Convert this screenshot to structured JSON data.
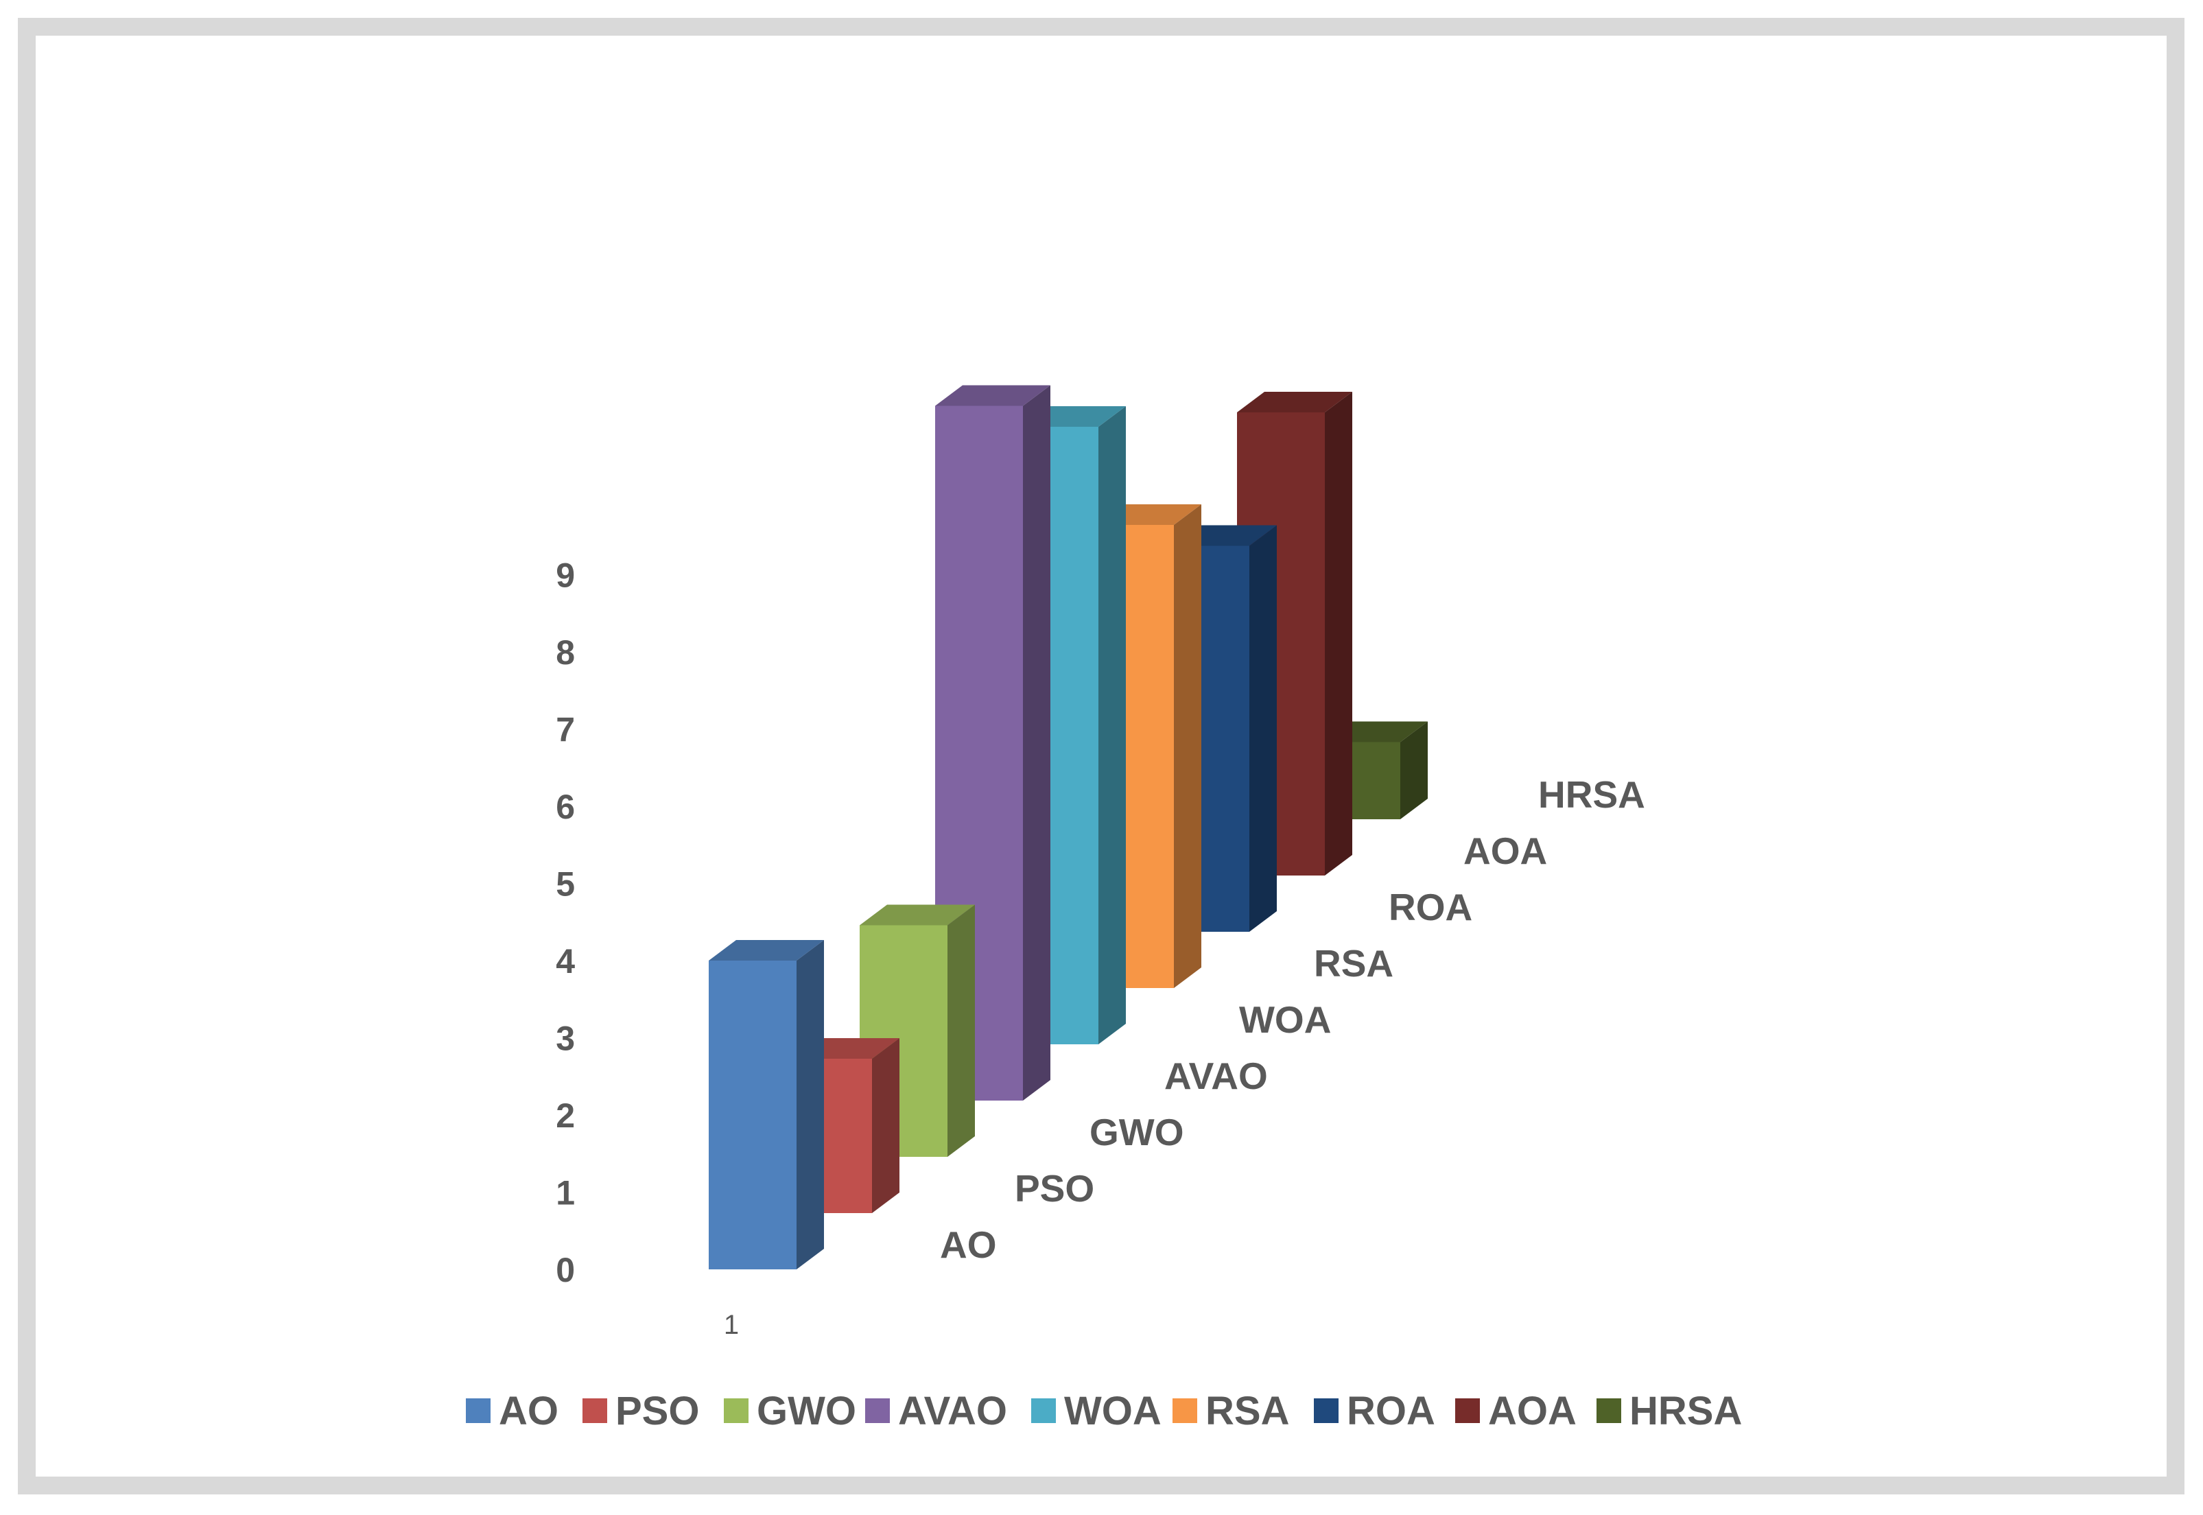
{
  "chart_data": {
    "type": "bar",
    "subtype": "3d-column",
    "title": "",
    "xlabel": "",
    "ylabel": "",
    "categories": [
      "1"
    ],
    "ylim": [
      0,
      9
    ],
    "yticks": [
      "0",
      "1",
      "2",
      "3",
      "4",
      "5",
      "6",
      "7",
      "8",
      "9"
    ],
    "series": [
      {
        "name": "AO",
        "values": [
          4.0
        ],
        "color": "#4f81bd"
      },
      {
        "name": "PSO",
        "values": [
          2.0
        ],
        "color": "#c0504d"
      },
      {
        "name": "GWO",
        "values": [
          3.0
        ],
        "color": "#9bbb59"
      },
      {
        "name": "AVAO",
        "values": [
          9.0
        ],
        "color": "#8064a2"
      },
      {
        "name": "WOA",
        "values": [
          8.0
        ],
        "color": "#4bacc6"
      },
      {
        "name": "RSA",
        "values": [
          6.0
        ],
        "color": "#f79646"
      },
      {
        "name": "ROA",
        "values": [
          5.0
        ],
        "color": "#1f497d"
      },
      {
        "name": "AOA",
        "values": [
          6.0
        ],
        "color": "#772c2a"
      },
      {
        "name": "HRSA",
        "values": [
          1.0
        ],
        "color": "#4f6228"
      }
    ],
    "legend_position": "bottom"
  }
}
